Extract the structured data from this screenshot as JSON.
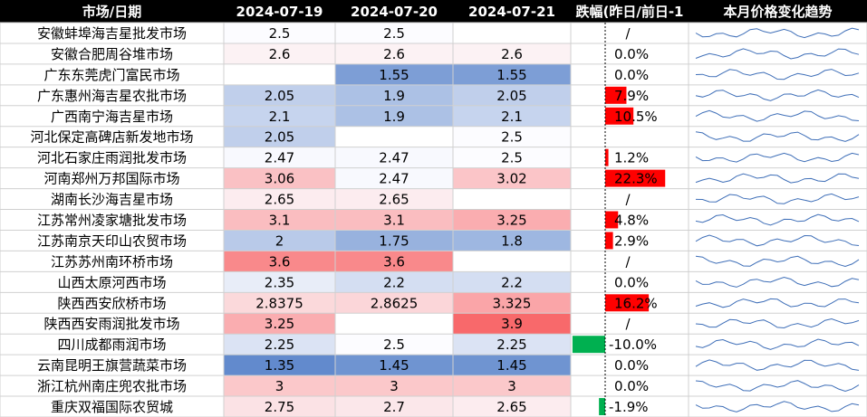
{
  "table": {
    "header": [
      "市场/日期",
      "2024-07-19",
      "2024-07-20",
      "2024-07-21",
      "跌幅(昨日/前日-1",
      "本月价格变化趋势"
    ],
    "rows": [
      {
        "market": "安徽蚌埠海吉星批发市场",
        "prices": [
          2.5,
          2.5,
          null
        ],
        "change": "/"
      },
      {
        "market": "安徽合肥周谷堆市场",
        "prices": [
          2.6,
          2.6,
          2.6
        ],
        "change": {
          "value": 0,
          "label": "0.0%"
        }
      },
      {
        "market": "广东东莞虎门富民市场",
        "prices": [
          null,
          1.55,
          1.55
        ],
        "change": {
          "value": 0,
          "label": "0.0%"
        }
      },
      {
        "market": "广东惠州海吉星农批市场",
        "prices": [
          2.05,
          1.9,
          2.05
        ],
        "change": {
          "value": 7.9,
          "label": "7.9%"
        }
      },
      {
        "market": "广西南宁海吉星市场",
        "prices": [
          2.1,
          1.9,
          2.1
        ],
        "change": {
          "value": 10.5,
          "label": "10.5%"
        }
      },
      {
        "market": "河北保定高碑店新发地市场",
        "prices": [
          2.05,
          null,
          2.5
        ],
        "change": null
      },
      {
        "market": "河北石家庄雨润批发市场",
        "prices": [
          2.47,
          2.47,
          2.5
        ],
        "change": {
          "value": 1.2,
          "label": "1.2%"
        }
      },
      {
        "market": "河南郑州万邦国际市场",
        "prices": [
          3.06,
          2.47,
          3.02
        ],
        "change": {
          "value": 22.3,
          "label": "22.3%"
        }
      },
      {
        "market": "湖南长沙海吉星市场",
        "prices": [
          2.65,
          2.65,
          null
        ],
        "change": "/"
      },
      {
        "market": "江苏常州凌家塘批发市场",
        "prices": [
          3.1,
          3.1,
          3.25
        ],
        "change": {
          "value": 4.8,
          "label": "4.8%"
        }
      },
      {
        "market": "江苏南京天印山农贸市场",
        "prices": [
          2,
          1.75,
          1.8
        ],
        "change": {
          "value": 2.9,
          "label": "2.9%"
        }
      },
      {
        "market": "江苏苏州南环桥市场",
        "prices": [
          3.6,
          3.6,
          null
        ],
        "change": "/"
      },
      {
        "market": "山西太原河西市场",
        "prices": [
          2.35,
          2.2,
          2.2
        ],
        "change": {
          "value": 0,
          "label": "0.0%"
        }
      },
      {
        "market": "陕西西安欣桥市场",
        "prices": [
          2.8375,
          2.8625,
          3.325
        ],
        "change": {
          "value": 16.2,
          "label": "16.2%"
        }
      },
      {
        "market": "陕西西安雨润批发市场",
        "prices": [
          3.25,
          null,
          3.9
        ],
        "change": "/"
      },
      {
        "market": "四川成都雨润市场",
        "prices": [
          2.25,
          2.5,
          2.25
        ],
        "change": {
          "value": -10.0,
          "label": "-10.0%"
        }
      },
      {
        "market": "云南昆明王旗营蔬菜市场",
        "prices": [
          1.35,
          1.45,
          1.45
        ],
        "change": {
          "value": 0,
          "label": "0.0%"
        }
      },
      {
        "market": "浙江杭州南庄兜农批市场",
        "prices": [
          3,
          3,
          3
        ],
        "change": {
          "value": 0,
          "label": "0.0%"
        }
      },
      {
        "market": "重庆双福国际农贸城",
        "prices": [
          2.75,
          2.7,
          2.65
        ],
        "change": {
          "value": -1.9,
          "label": "-1.9%"
        }
      }
    ]
  }
}
